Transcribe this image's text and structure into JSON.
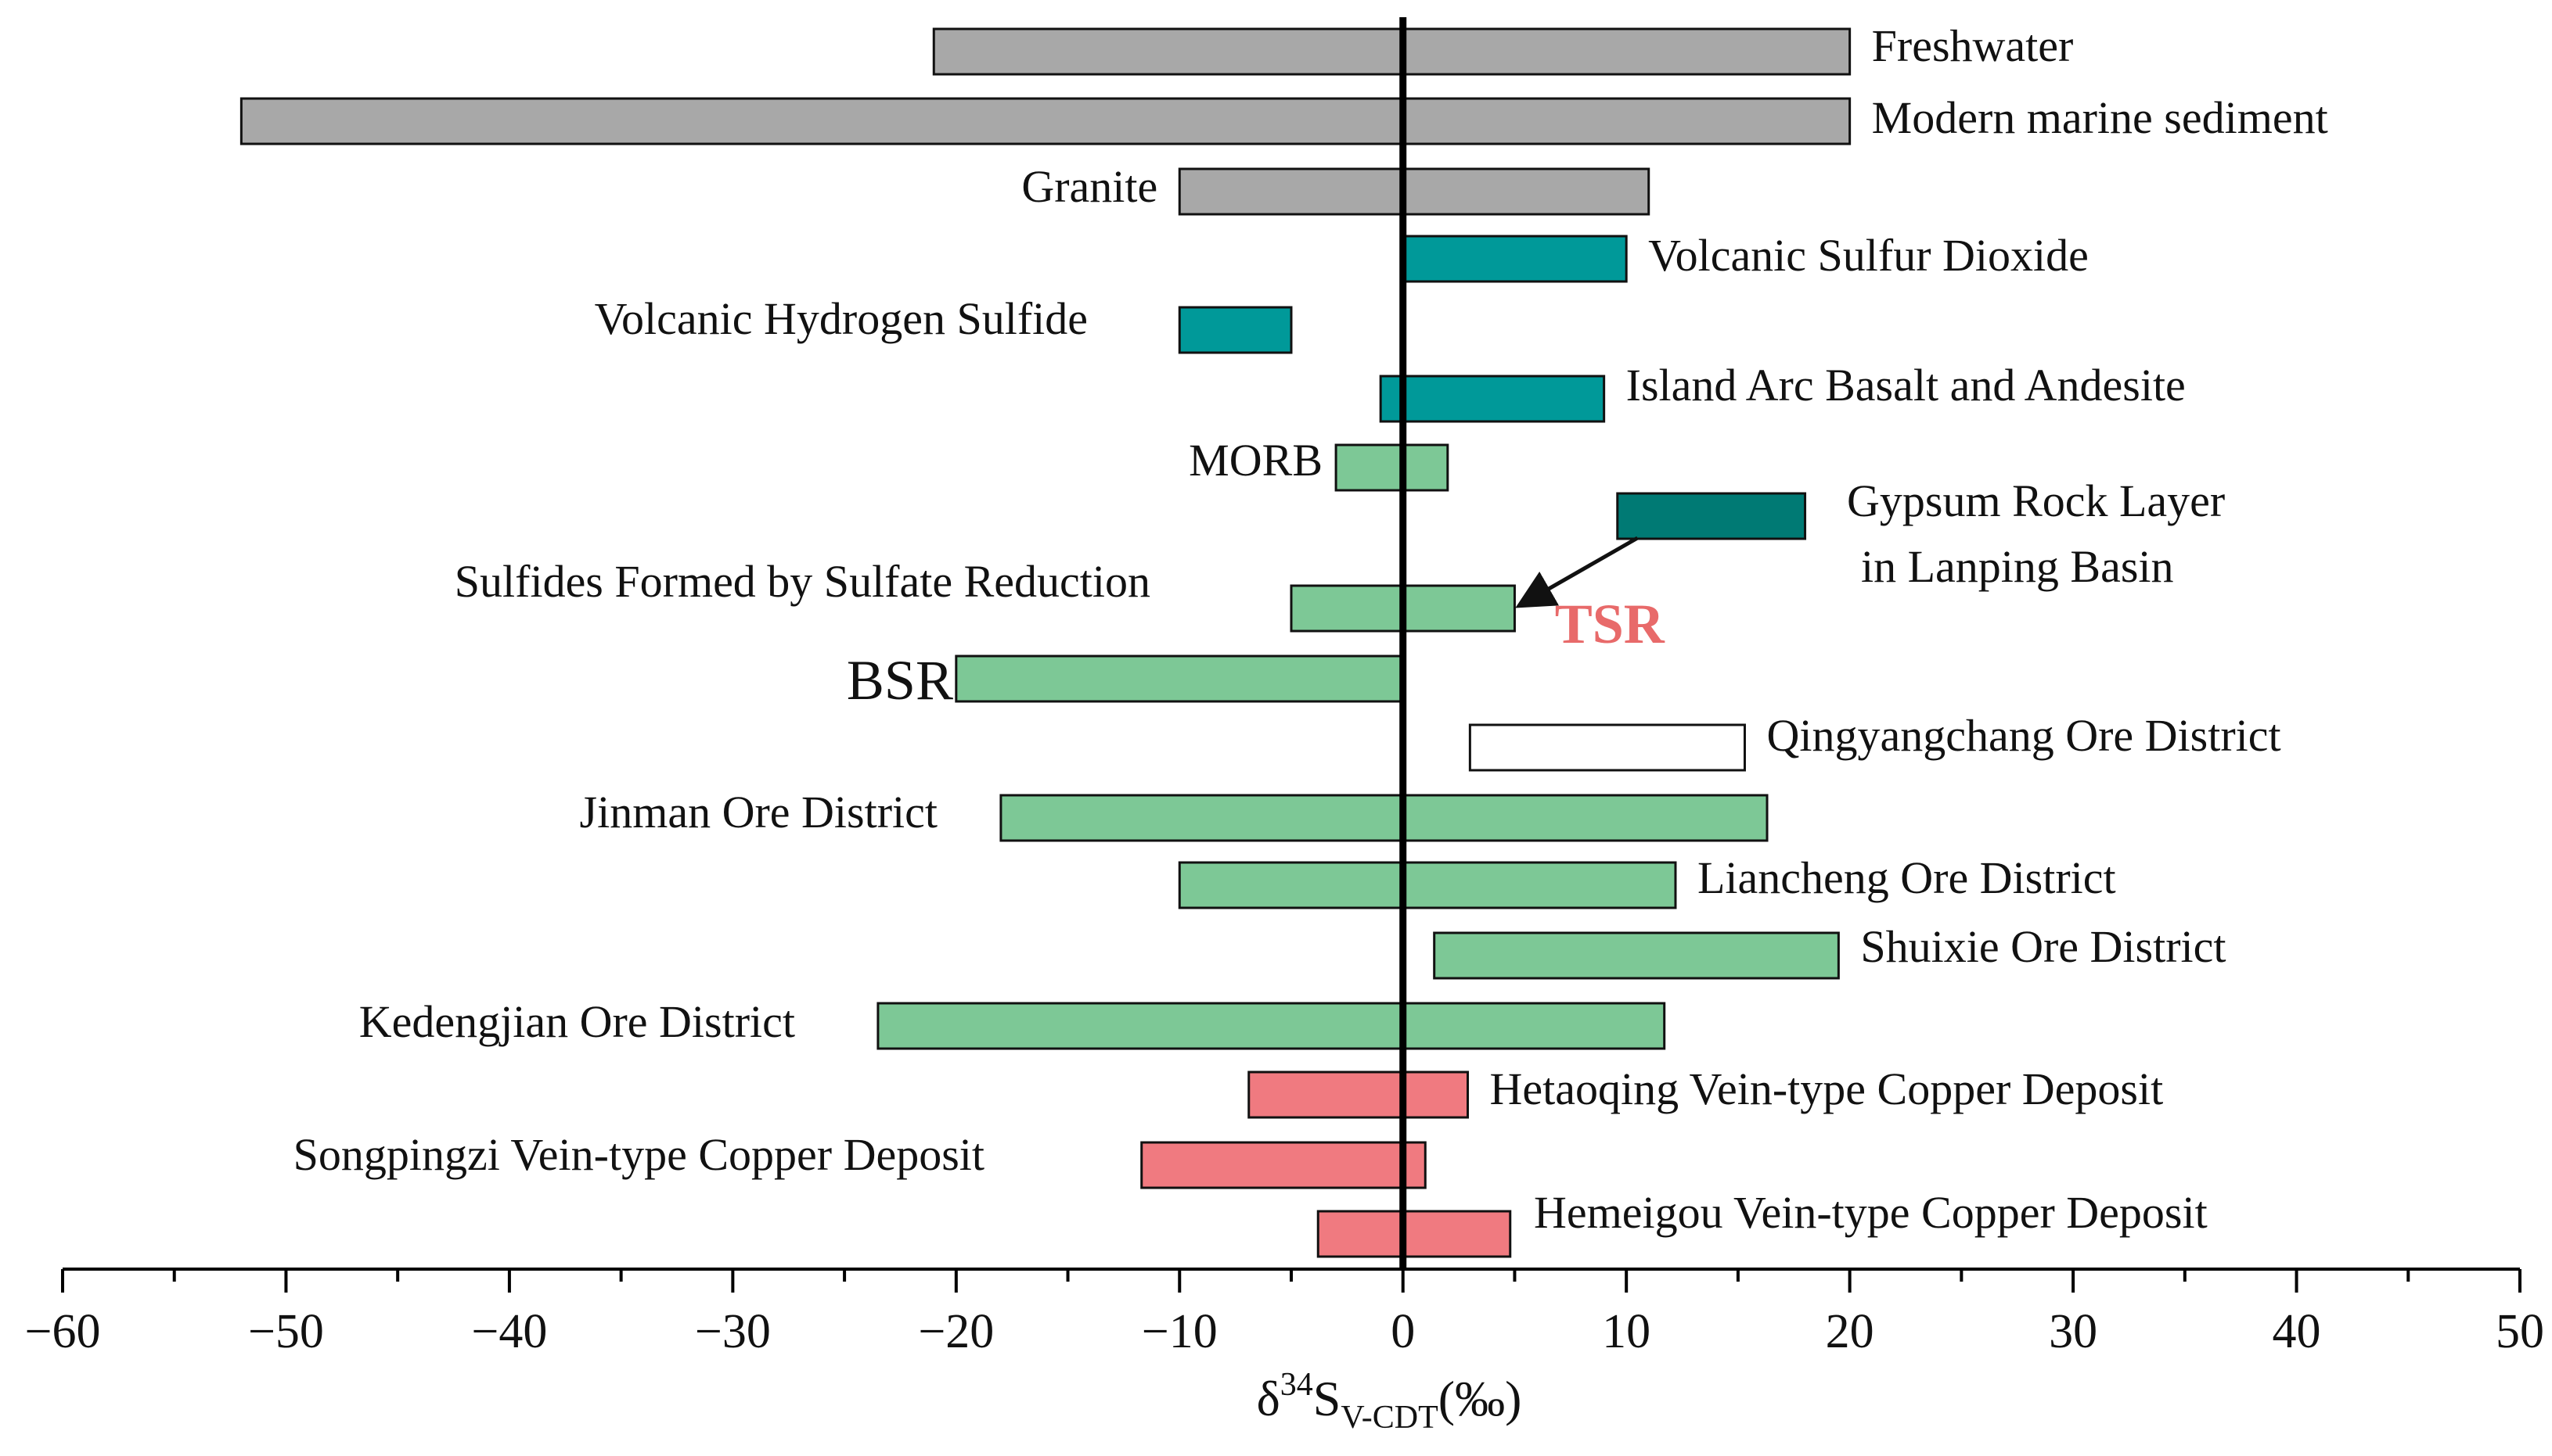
{
  "chart_data": {
    "type": "bar",
    "orientation": "horizontal-range",
    "xlim": [
      -60,
      50
    ],
    "xticks": [
      -60,
      -50,
      -40,
      -30,
      -20,
      -10,
      0,
      10,
      20,
      30,
      40,
      50
    ],
    "xtick_labels": [
      "−60",
      "−50",
      "−40",
      "−30",
      "−20",
      "−10",
      "0",
      "10",
      "20",
      "30",
      "40",
      "50"
    ],
    "xlabel": {
      "base": "δ",
      "sup": "34",
      "main": "S",
      "sub": "V-CDT",
      "unit": "(‰)"
    },
    "zero_line": 0,
    "colors": {
      "gray": "#a8a8a8",
      "teal": "#009999",
      "darkteal": "#007a74",
      "green": "#7dc896",
      "white": "#ffffff",
      "red": "#f07a80",
      "tsr_label": "#e86a6a"
    },
    "series": [
      {
        "name": "Freshwater",
        "min": -21,
        "max": 20,
        "color": "gray",
        "label_side": "right"
      },
      {
        "name": "Modern marine sediment",
        "min": -52,
        "max": 20,
        "color": "gray",
        "label_side": "right"
      },
      {
        "name": "Granite",
        "min": -10,
        "max": 11,
        "color": "gray",
        "label_side": "left"
      },
      {
        "name": "Volcanic Sulfur Dioxide",
        "min": 0,
        "max": 10,
        "color": "teal",
        "label_side": "right"
      },
      {
        "name": "Volcanic Hydrogen Sulfide",
        "min": -10,
        "max": -5,
        "color": "teal",
        "label_side": "left"
      },
      {
        "name": "Island Arc Basalt and Andesite",
        "min": -1,
        "max": 9,
        "color": "teal",
        "label_side": "right"
      },
      {
        "name": "MORB",
        "min": -3,
        "max": 2,
        "color": "green",
        "label_side": "left"
      },
      {
        "name": "Gypsum Rock Layer in Lanping Basin",
        "lines": [
          "Gypsum Rock Layer",
          "in Lanping Basin"
        ],
        "min": 9.6,
        "max": 18,
        "color": "darkteal",
        "label_side": "right"
      },
      {
        "name": "Sulfides Formed by Sulfate Reduction",
        "min": -5,
        "max": 5,
        "color": "green",
        "label_side": "left"
      },
      {
        "name": "BSR",
        "min": -20,
        "max": 0,
        "color": "green",
        "label_side": "left"
      },
      {
        "name": "Qingyangchang Ore District",
        "min": 3,
        "max": 15.3,
        "color": "white",
        "label_side": "right"
      },
      {
        "name": "Jinman Ore District",
        "min": -18,
        "max": 16.3,
        "color": "green",
        "label_side": "left"
      },
      {
        "name": "Liancheng Ore District",
        "min": -10,
        "max": 12.2,
        "color": "green",
        "label_side": "right"
      },
      {
        "name": "Shuixie Ore District",
        "min": 1.4,
        "max": 19.5,
        "color": "green",
        "label_side": "right"
      },
      {
        "name": "Kedengjian Ore District",
        "min": -23.5,
        "max": 11.7,
        "color": "green",
        "label_side": "left"
      },
      {
        "name": "Hetaoqing Vein-type Copper Deposit",
        "min": -6.9,
        "max": 2.9,
        "color": "red",
        "label_side": "right"
      },
      {
        "name": "Songpingzi Vein-type Copper Deposit",
        "min": -11.7,
        "max": 1,
        "color": "red",
        "label_side": "left"
      },
      {
        "name": "Hemeigou Vein-type Copper Deposit",
        "min": -3.8,
        "max": 4.8,
        "color": "red",
        "label_side": "right"
      }
    ],
    "annotations": [
      {
        "text": "TSR",
        "color": "tsr_label",
        "x": 10.3,
        "arrow_from": [
          10.5,
          9.6
        ],
        "arrow_to": [
          4.9,
          8.6
        ]
      }
    ]
  }
}
